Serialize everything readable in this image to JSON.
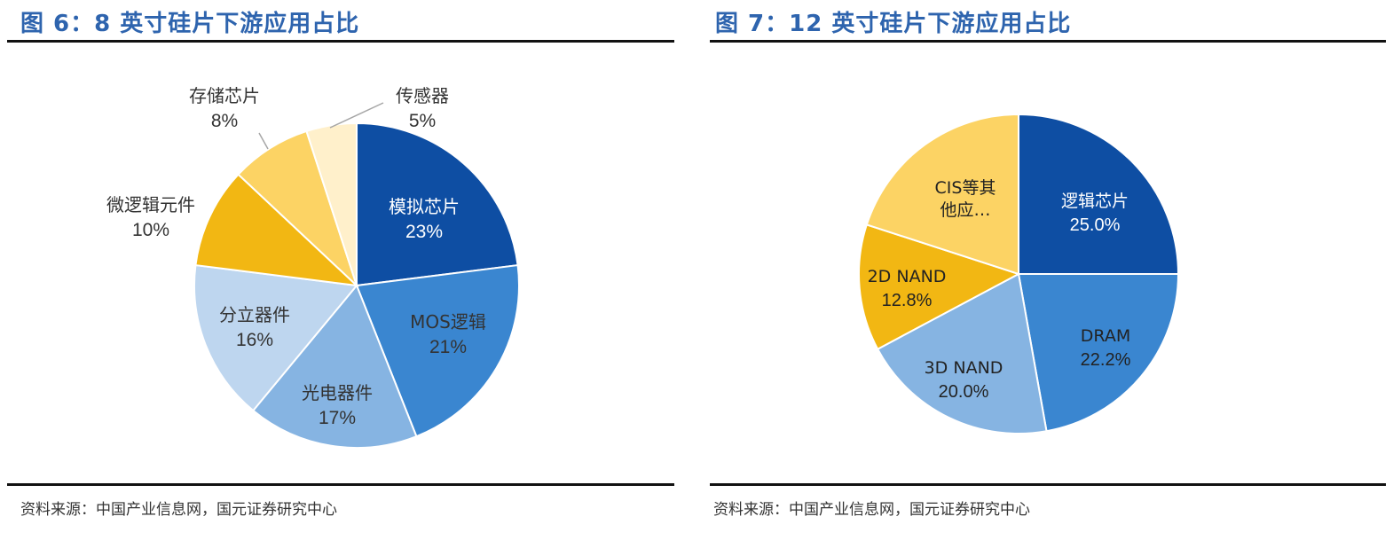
{
  "chart_data": [
    {
      "type": "pie",
      "title": "图 6：8 英寸硅片下游应用占比",
      "source": "资料来源：中国产业信息网，国元证券研究中心",
      "slices": [
        {
          "name": "模拟芯片",
          "value": 23,
          "label": "23%",
          "color": "#0e4ea3",
          "text_color": "#ffffff"
        },
        {
          "name": "MOS逻辑",
          "value": 21,
          "label": "21%",
          "color": "#3a86d0",
          "text_color": "#333333"
        },
        {
          "name": "光电器件",
          "value": 17,
          "label": "17%",
          "color": "#86b4e2",
          "text_color": "#333333"
        },
        {
          "name": "分立器件",
          "value": 16,
          "label": "16%",
          "color": "#bed6ef",
          "text_color": "#333333"
        },
        {
          "name": "微逻辑元件",
          "value": 10,
          "label": "10%",
          "color": "#f2b713",
          "text_color": "#333333"
        },
        {
          "name": "存储芯片",
          "value": 8,
          "label": "8%",
          "color": "#fcd364",
          "text_color": "#333333"
        },
        {
          "name": "传感器",
          "value": 5,
          "label": "5%",
          "color": "#fff0cb",
          "text_color": "#333333"
        }
      ]
    },
    {
      "type": "pie",
      "title": "图 7：12 英寸硅片下游应用占比",
      "source": "资料来源：中国产业信息网，国元证券研究中心",
      "slices": [
        {
          "name": "逻辑芯片",
          "value": 25.0,
          "label": "25.0%",
          "color": "#0e4ea3",
          "text_color": "#ffffff"
        },
        {
          "name": "DRAM",
          "value": 22.2,
          "label": "22.2%",
          "color": "#3a86d0",
          "text_color": "#222222"
        },
        {
          "name": "3D NAND",
          "value": 20.0,
          "label": "20.0%",
          "color": "#86b4e2",
          "text_color": "#222222"
        },
        {
          "name": "2D NAND",
          "value": 12.8,
          "label": "12.8%",
          "color": "#f2b713",
          "text_color": "#222222"
        },
        {
          "name": "CIS等其他应…",
          "name_lines": [
            "CIS等其",
            "他应…"
          ],
          "value": 20.0,
          "label": "",
          "color": "#fcd364",
          "text_color": "#222222"
        }
      ]
    }
  ]
}
